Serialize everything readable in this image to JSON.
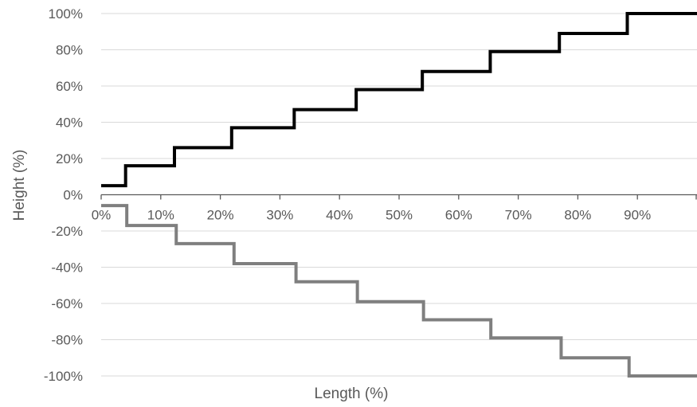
{
  "chart_data": {
    "type": "line",
    "xlabel": "Length (%)",
    "ylabel": "Height (%)",
    "xlim": [
      0,
      100
    ],
    "ylim": [
      -100,
      100
    ],
    "x_ticks": [
      0,
      10,
      20,
      30,
      40,
      50,
      60,
      70,
      80,
      90
    ],
    "x_tick_labels": [
      "0%",
      "10%",
      "20%",
      "30%",
      "40%",
      "50%",
      "60%",
      "70%",
      "80%",
      "90%"
    ],
    "y_ticks": [
      100,
      80,
      60,
      40,
      20,
      0,
      -20,
      -40,
      -60,
      -80,
      -100
    ],
    "y_tick_labels": [
      "100%",
      "80%",
      "60%",
      "40%",
      "20%",
      "0%",
      "-20%",
      "-40%",
      "-60%",
      "-80%",
      "-100%"
    ],
    "grid": "horizontal",
    "legend": "none",
    "series": [
      {
        "color": "#000000",
        "step_edges_x": [
          0,
          4.1,
          12.3,
          21.9,
          32.4,
          42.8,
          53.9,
          65.3,
          76.9,
          88.3,
          100
        ],
        "step_levels_y": [
          5,
          16,
          26,
          37,
          47,
          58,
          68,
          79,
          89,
          100
        ]
      },
      {
        "color": "#7f7f7f",
        "step_edges_x": [
          0,
          4.3,
          12.6,
          22.3,
          32.7,
          43.0,
          54.1,
          65.4,
          77.2,
          88.6,
          100
        ],
        "step_levels_y": [
          -6,
          -17,
          -27,
          -38,
          -48,
          -59,
          -69,
          -79,
          -90,
          -100
        ]
      }
    ]
  }
}
